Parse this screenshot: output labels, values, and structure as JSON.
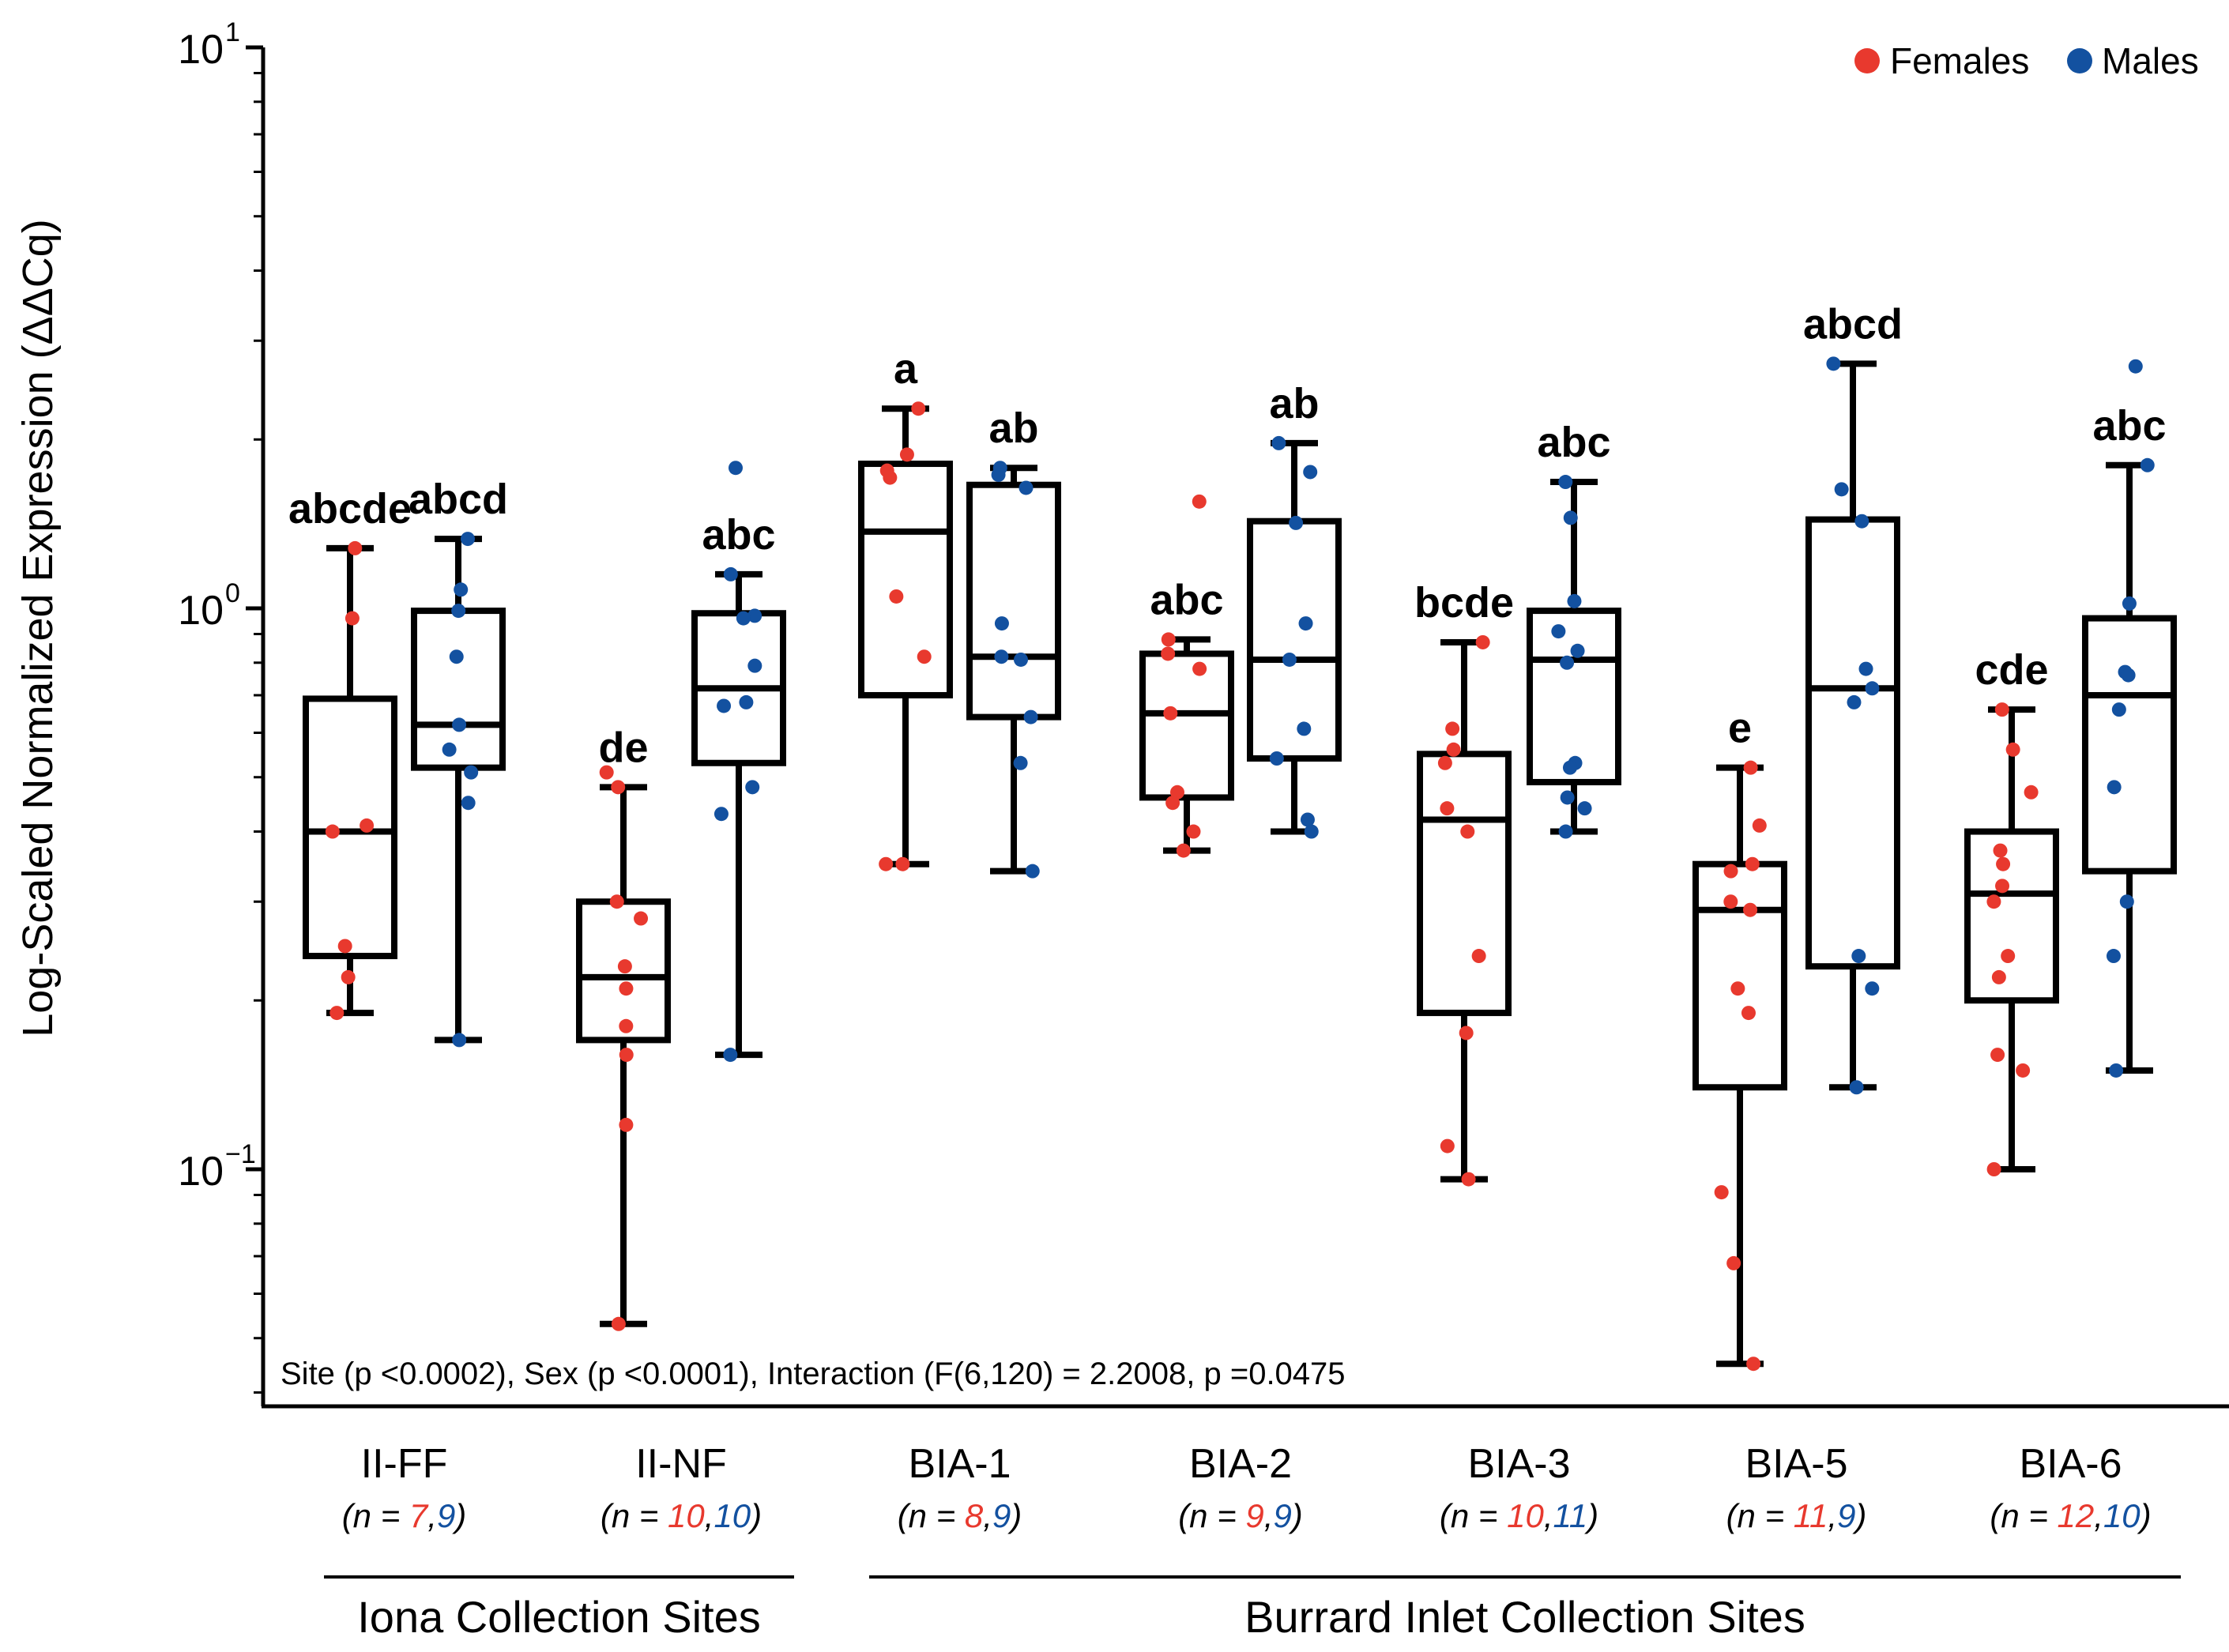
{
  "chart_data": {
    "type": "box",
    "scale": "log",
    "ylabel": "Log-Scaled Normalized Expression (ΔΔCq)",
    "ylim": [
      0.04,
      10
    ],
    "yticks": [
      {
        "value": 10,
        "base": "10",
        "exp": "1"
      },
      {
        "value": 1,
        "base": "10",
        "exp": "0"
      },
      {
        "value": 0.1,
        "base": "10",
        "exp": "−1"
      }
    ],
    "legend": {
      "position": "top-right",
      "items": [
        {
          "label": "Females",
          "color": "#e8392e"
        },
        {
          "label": "Males",
          "color": "#1351a0"
        }
      ]
    },
    "colors": {
      "female": "#e8392e",
      "male": "#1351a0"
    },
    "stats_text": "Site (p <0.0002), Sex (p <0.0001), Interaction (F(6,120) = 2.2008, p =0.0475",
    "site_groups": [
      {
        "label": "Iona Collection Sites",
        "from": 0,
        "to": 1
      },
      {
        "label": "Burrard Inlet Collection Sites",
        "from": 2,
        "to": 6
      }
    ],
    "sites": [
      {
        "name": "II-FF",
        "n_open": "(n = ",
        "n_f": "7",
        "n_sep": ",",
        "n_m": "9",
        "n_close": ")",
        "female": {
          "sig": "abcde",
          "min": 0.19,
          "q1": 0.24,
          "median": 0.4,
          "q3": 0.69,
          "max": 1.28,
          "points": [
            0.41,
            0.4,
            0.96,
            0.25,
            0.22,
            1.28,
            0.19
          ]
        },
        "male": {
          "sig": "abcd",
          "min": 0.17,
          "q1": 0.52,
          "median": 0.62,
          "q3": 0.99,
          "max": 1.33,
          "points": [
            1.33,
            1.08,
            0.82,
            0.56,
            0.51,
            0.45,
            0.99,
            0.17,
            0.62
          ]
        }
      },
      {
        "name": "II-NF",
        "n_open": "(n = ",
        "n_f": "10",
        "n_sep": ",",
        "n_m": "10",
        "n_close": ")",
        "female": {
          "sig": "de",
          "min": 0.053,
          "q1": 0.17,
          "median": 0.22,
          "q3": 0.3,
          "max": 0.48,
          "points": [
            0.51,
            0.48,
            0.3,
            0.28,
            0.23,
            0.21,
            0.18,
            0.16,
            0.12,
            0.053
          ]
        },
        "male": {
          "sig": "abc",
          "min": 0.16,
          "q1": 0.53,
          "median": 0.72,
          "q3": 0.98,
          "max": 1.15,
          "points": [
            1.78,
            1.15,
            0.97,
            0.96,
            0.79,
            0.68,
            0.67,
            0.48,
            0.43,
            0.16
          ]
        }
      },
      {
        "name": "BIA-1",
        "n_open": "(n = ",
        "n_f": "8",
        "n_sep": ",",
        "n_m": "9",
        "n_close": ")",
        "female": {
          "sig": "a",
          "min": 0.35,
          "q1": 0.7,
          "median": 1.37,
          "q3": 1.81,
          "max": 2.27,
          "points": [
            2.27,
            1.88,
            1.76,
            1.71,
            1.05,
            0.82,
            0.35,
            0.35
          ]
        },
        "male": {
          "sig": "ab",
          "min": 0.34,
          "q1": 0.64,
          "median": 0.82,
          "q3": 1.66,
          "max": 1.78,
          "points": [
            1.78,
            1.73,
            1.64,
            0.94,
            0.82,
            0.81,
            0.64,
            0.53,
            0.34
          ]
        }
      },
      {
        "name": "BIA-2",
        "n_open": "(n = ",
        "n_f": "9",
        "n_sep": ",",
        "n_m": "9",
        "n_close": ")",
        "female": {
          "sig": "abc",
          "min": 0.37,
          "q1": 0.46,
          "median": 0.65,
          "q3": 0.83,
          "max": 0.88,
          "points": [
            1.55,
            0.88,
            0.83,
            0.78,
            0.65,
            0.47,
            0.45,
            0.4,
            0.37
          ]
        },
        "male": {
          "sig": "ab",
          "min": 0.4,
          "q1": 0.54,
          "median": 0.81,
          "q3": 1.43,
          "max": 1.97,
          "points": [
            1.97,
            1.75,
            1.42,
            0.94,
            0.81,
            0.61,
            0.54,
            0.42,
            0.4
          ]
        }
      },
      {
        "name": "BIA-3",
        "n_open": "(n = ",
        "n_f": "10",
        "n_sep": ",",
        "n_m": "11",
        "n_close": ")",
        "female": {
          "sig": "bcde",
          "min": 0.096,
          "q1": 0.19,
          "median": 0.42,
          "q3": 0.55,
          "max": 0.87,
          "points": [
            0.87,
            0.61,
            0.56,
            0.53,
            0.44,
            0.4,
            0.24,
            0.175,
            0.11,
            0.096
          ]
        },
        "male": {
          "sig": "abc",
          "min": 0.4,
          "q1": 0.49,
          "median": 0.81,
          "q3": 0.99,
          "max": 1.68,
          "points": [
            1.68,
            1.45,
            1.03,
            0.91,
            0.84,
            0.8,
            0.53,
            0.52,
            0.46,
            0.44,
            0.4
          ]
        }
      },
      {
        "name": "BIA-5",
        "n_open": "(n = ",
        "n_f": "11",
        "n_sep": ",",
        "n_m": "9",
        "n_close": ")",
        "female": {
          "sig": "e",
          "min": 0.045,
          "q1": 0.14,
          "median": 0.29,
          "q3": 0.35,
          "max": 0.52,
          "points": [
            0.52,
            0.41,
            0.35,
            0.34,
            0.3,
            0.29,
            0.21,
            0.19,
            0.091,
            0.068,
            0.045
          ]
        },
        "male": {
          "sig": "abcd",
          "min": 0.14,
          "q1": 0.23,
          "median": 0.72,
          "q3": 1.44,
          "max": 2.73,
          "points": [
            2.73,
            1.63,
            1.43,
            0.78,
            0.72,
            0.68,
            0.24,
            0.21,
            0.14
          ]
        }
      },
      {
        "name": "BIA-6",
        "n_open": "(n = ",
        "n_f": "12",
        "n_sep": ",",
        "n_m": "10",
        "n_close": ")",
        "female": {
          "sig": "cde",
          "min": 0.1,
          "q1": 0.2,
          "median": 0.31,
          "q3": 0.4,
          "max": 0.66,
          "points": [
            0.66,
            0.56,
            0.47,
            0.37,
            0.35,
            0.32,
            0.3,
            0.24,
            0.22,
            0.16,
            0.15,
            0.1
          ]
        },
        "male": {
          "sig": "abc",
          "min": 0.15,
          "q1": 0.34,
          "median": 0.7,
          "q3": 0.96,
          "max": 1.8,
          "points": [
            2.7,
            1.8,
            1.02,
            0.77,
            0.76,
            0.66,
            0.48,
            0.3,
            0.24,
            0.15
          ]
        }
      }
    ]
  }
}
